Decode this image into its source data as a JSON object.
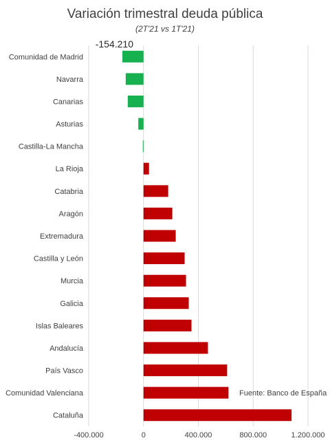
{
  "chart_data": {
    "type": "bar",
    "orientation": "horizontal",
    "title": "Variación trimestral deuda pública",
    "subtitle": "(2T'21 vs 1T'21)",
    "source": "Fuente: Banco de España",
    "categories": [
      "Comunidad de Madrid",
      "Navarra",
      "Canarias",
      "Asturias",
      "Castilla-La Mancha",
      "La Rioja",
      "Catabria",
      "Aragón",
      "Extremadura",
      "Castilla y León",
      "Murcia",
      "Galicia",
      "Islas Baleares",
      "Andalucía",
      "País Vasco",
      "Comunidad Valenciana",
      "Cataluña"
    ],
    "values": [
      -154210,
      -130000,
      -115000,
      -38000,
      -5000,
      40000,
      180000,
      210000,
      235000,
      300000,
      310000,
      330000,
      350000,
      470000,
      610000,
      620000,
      1080000
    ],
    "data_labels": [
      {
        "index": 0,
        "text": "-154.210"
      }
    ],
    "xlim": [
      -400000,
      1200000
    ],
    "xticks": [
      -400000,
      0,
      400000,
      800000,
      1200000
    ],
    "xtick_labels": [
      "-400.000",
      "0",
      "400.000",
      "800.000",
      "1.200.000"
    ],
    "grid": true,
    "colors": {
      "negative": "#18b14f",
      "positive": "#c00000",
      "grid": "#d9d9d9"
    }
  }
}
